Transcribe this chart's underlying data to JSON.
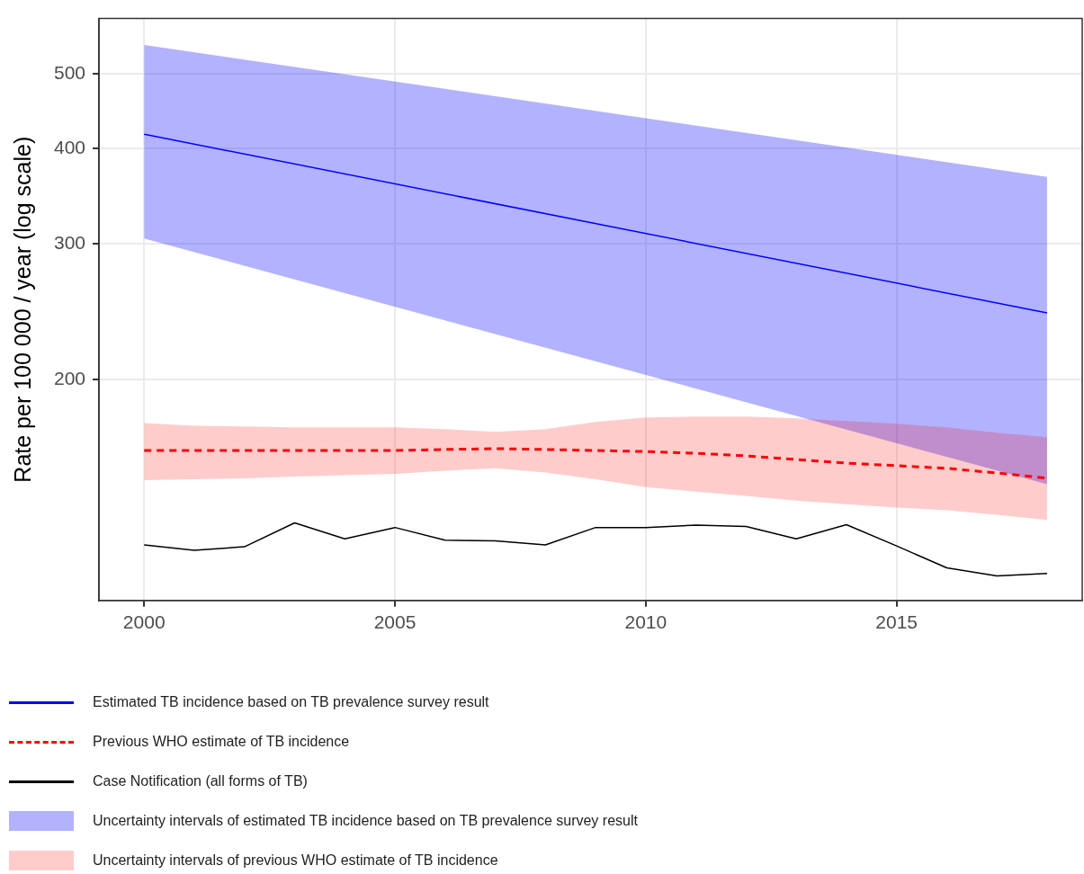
{
  "chart_data": {
    "type": "line",
    "ylabel": "Rate per 100 000 / year (log scale)",
    "log": "y",
    "grid": true,
    "legend": "bottom",
    "marker": "none",
    "xlim": [
      1999.1,
      2018.7
    ],
    "xticks": [
      2000,
      2005,
      2010,
      2015
    ],
    "ylim": [
      103,
      590
    ],
    "yticks": [
      200,
      300,
      400,
      500
    ],
    "series": [
      {
        "name": "Estimated TB incidence based on TB prevalence survey result",
        "type": "line",
        "color": "#0000ff",
        "line_style": "solid",
        "x": [
          2000,
          2018
        ],
        "values": [
          417,
          244
        ],
        "lower": [
          305,
          146
        ],
        "upper": [
          545,
          367
        ]
      },
      {
        "name": "Previous WHO estimate of TB incidence",
        "type": "line",
        "color": "#ff0000",
        "line_style": "dashed",
        "x": [
          2000,
          2001,
          2002,
          2003,
          2004,
          2005,
          2006,
          2007,
          2008,
          2009,
          2010,
          2011,
          2012,
          2013,
          2014,
          2015,
          2016,
          2017,
          2018
        ],
        "values": [
          161.5,
          161.5,
          161.5,
          161.5,
          161.5,
          161.5,
          162,
          162.4,
          162,
          161.5,
          161,
          160.2,
          158.9,
          157.2,
          155.5,
          154.3,
          153.1,
          151,
          148.6
        ],
        "lower": [
          147.8,
          148.2,
          148.6,
          149.4,
          150,
          150.6,
          152,
          153.1,
          151.2,
          148.2,
          144.7,
          142.8,
          140.9,
          139,
          137.5,
          136.1,
          135,
          133.2,
          131.1
        ],
        "upper": [
          175.4,
          174,
          173.6,
          173.1,
          173.1,
          173.1,
          172.2,
          170.8,
          172.2,
          175.9,
          178.3,
          178.8,
          178.8,
          177.8,
          176.4,
          175,
          173.1,
          170.4,
          168.1
        ]
      },
      {
        "name": "Case Notification (all forms of TB)",
        "type": "line",
        "color": "#000000",
        "line_style": "solid",
        "x": [
          2000,
          2001,
          2002,
          2003,
          2004,
          2005,
          2006,
          2007,
          2008,
          2009,
          2010,
          2011,
          2012,
          2013,
          2014,
          2015,
          2016,
          2017,
          2018
        ],
        "values": [
          121.7,
          119.7,
          121,
          130,
          123.9,
          128.2,
          123.4,
          123.2,
          121.7,
          128.2,
          128.2,
          129.1,
          128.6,
          123.9,
          129.3,
          121.3,
          113.6,
          110.9,
          111.7
        ]
      }
    ],
    "annotations": [
      "Uncertainty intervals of estimated TB incidence based on TB prevalence survey result",
      "Uncertainty intervals of previous WHO estimate of TB incidence"
    ]
  }
}
